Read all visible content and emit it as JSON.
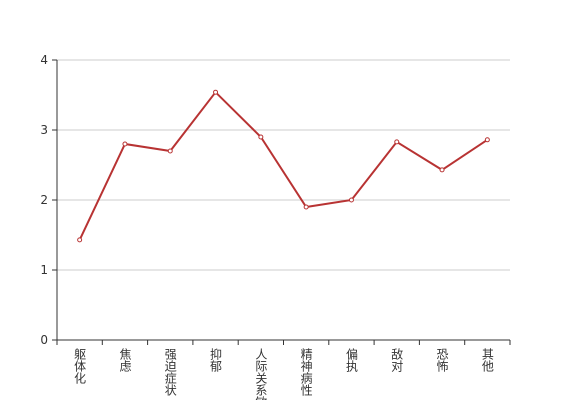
{
  "chart_data": {
    "type": "line",
    "categories": [
      "躯体化",
      "焦虑",
      "强迫症状",
      "抑郁",
      "人际关系敏感",
      "精神病性",
      "偏执",
      "敌对",
      "恐怖",
      "其他"
    ],
    "values": [
      1.43,
      2.8,
      2.7,
      3.54,
      2.9,
      1.9,
      2.0,
      2.83,
      2.43,
      2.86
    ],
    "color": "#b83333",
    "ylim": [
      0,
      4
    ],
    "yticks": [
      0,
      1,
      2,
      3,
      4
    ],
    "grid": true
  }
}
